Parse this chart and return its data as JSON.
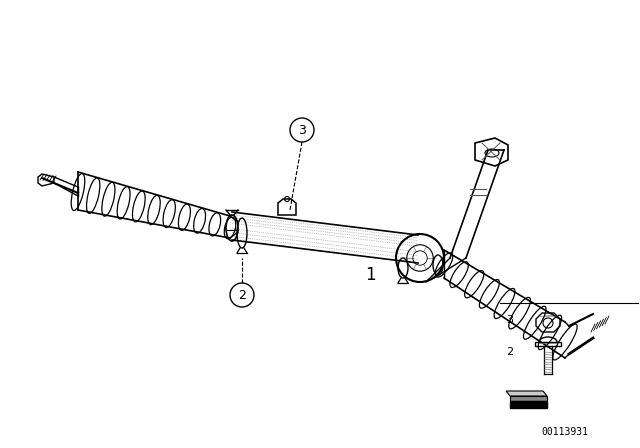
{
  "background_color": "#ffffff",
  "line_color": "#000000",
  "part_number_label": "00113931",
  "label1": "1",
  "label2": "2",
  "label3": "3",
  "fig_width": 6.4,
  "fig_height": 4.48,
  "dpi": 100
}
